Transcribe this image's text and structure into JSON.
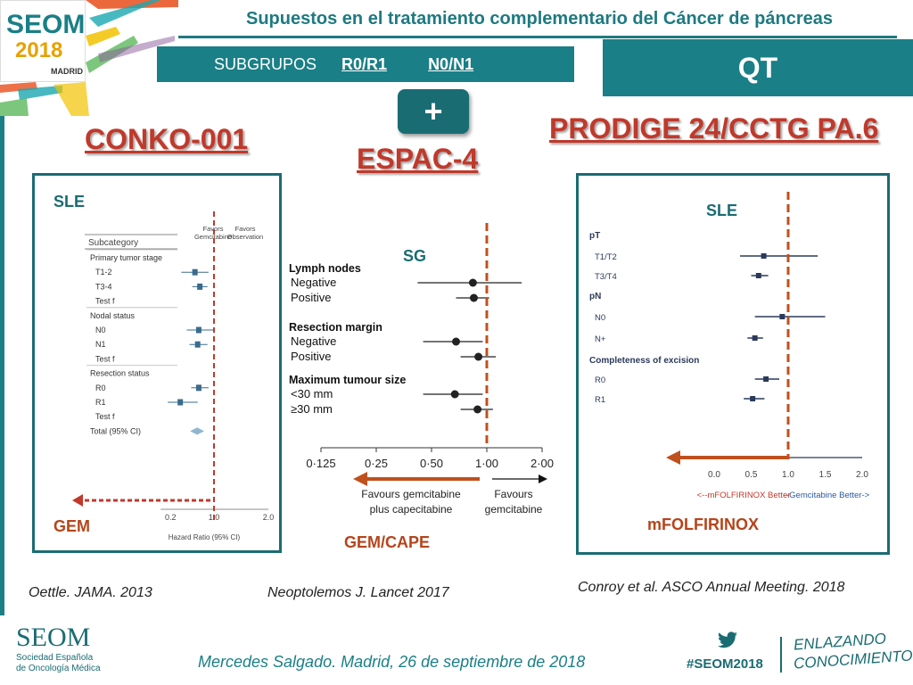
{
  "header": {
    "logo_text": "SEOM",
    "logo_year": "2018",
    "logo_city": "MADRID",
    "title": "Supuestos en el tratamiento complementario del Cáncer de páncreas"
  },
  "subgroups": {
    "label": "SUBGRUPOS",
    "r": "R0/R1",
    "n": "N0/N1"
  },
  "qt_label": "QT",
  "plus_label": "+",
  "trials": {
    "conko": "CONKO-001",
    "espac": "ESPAC-4",
    "prodige": "PRODIGE 24/CCTG PA.6"
  },
  "labels": {
    "conko_endpoint": "SLE",
    "conko_arm": "GEM",
    "espac_endpoint": "SG",
    "espac_arm": "GEM/CAPE",
    "prodige_endpoint": "SLE",
    "prodige_arm": "mFOLFIRINOX"
  },
  "citations": {
    "conko": "Oettle. JAMA. 2013",
    "espac": "Neoptolemos J. Lancet 2017",
    "prodige": "Conroy et al. ASCO Annual Meeting. 2018"
  },
  "footer": {
    "org_name": "SEOM",
    "org_sub1": "Sociedad Española",
    "org_sub2": "de Oncología Médica",
    "author": "Mercedes Salgado. Madrid, 26 de septiembre de 2018",
    "hashtag": "#SEOM2018",
    "slogan1": "ENLAZANDO",
    "slogan2": "CONOCIMIENTO"
  },
  "colors": {
    "teal": "#1a7f86",
    "red": "#c0392b",
    "orange": "#c0501c"
  },
  "chart_data": [
    {
      "type": "forest",
      "header_left": "Subcategory",
      "col_favors_left": [
        "Favors",
        "Gemcitabine"
      ],
      "col_favors_right": [
        "Favors",
        "Observation"
      ],
      "xlabel": "Hazard Ratio (95% CI)",
      "ticks": [
        0.2,
        1.0,
        2.0
      ],
      "tick_labels": [
        "0.2",
        "1.0",
        "2.0"
      ],
      "rows": [
        {
          "label": "Primary tumor stage",
          "kind": "group"
        },
        {
          "label": "T1-2",
          "hr": 0.65,
          "lo": 0.4,
          "hi": 0.9
        },
        {
          "label": "T3-4",
          "hr": 0.74,
          "lo": 0.6,
          "hi": 0.88
        },
        {
          "label": "Test f",
          "kind": "test"
        },
        {
          "label": "Nodal status",
          "kind": "group"
        },
        {
          "label": "N0",
          "hr": 0.72,
          "lo": 0.5,
          "hi": 1.0
        },
        {
          "label": "N1",
          "hr": 0.7,
          "lo": 0.55,
          "hi": 0.88
        },
        {
          "label": "Test f",
          "kind": "test"
        },
        {
          "label": "Resection status",
          "kind": "group"
        },
        {
          "label": "R0",
          "hr": 0.72,
          "lo": 0.58,
          "hi": 0.9
        },
        {
          "label": "R1",
          "hr": 0.38,
          "lo": 0.15,
          "hi": 0.7
        },
        {
          "label": "Test f",
          "kind": "test"
        },
        {
          "label": "Total (95% CI)",
          "kind": "total",
          "hr": 0.69
        }
      ]
    },
    {
      "type": "forest",
      "axis": "log",
      "ticks": [
        0.125,
        0.25,
        0.5,
        1.0,
        2.0
      ],
      "tick_labels": [
        "0·125",
        "0·25",
        "0·50",
        "1·00",
        "2·00"
      ],
      "favours_left": [
        "Favours gemcitabine",
        "plus capecitabine"
      ],
      "favours_right": [
        "Favours",
        "gemcitabine"
      ],
      "rows": [
        {
          "label": "Lymph nodes",
          "kind": "group"
        },
        {
          "label": "Negative",
          "hr": 0.84,
          "lo": 0.42,
          "hi": 1.55
        },
        {
          "label": "Positive",
          "hr": 0.85,
          "lo": 0.68,
          "hi": 1.03
        },
        {
          "label": "Resection margin",
          "kind": "group"
        },
        {
          "label": "Negative",
          "hr": 0.68,
          "lo": 0.45,
          "hi": 0.95
        },
        {
          "label": "Positive",
          "hr": 0.9,
          "lo": 0.72,
          "hi": 1.12
        },
        {
          "label": "Maximum tumour size",
          "kind": "group"
        },
        {
          "label": "<30 mm",
          "hr": 0.67,
          "lo": 0.45,
          "hi": 0.95
        },
        {
          "label": "≥30 mm",
          "hr": 0.89,
          "lo": 0.72,
          "hi": 1.08
        }
      ]
    },
    {
      "type": "forest",
      "ticks": [
        0.0,
        0.5,
        1.0,
        1.5,
        2.0
      ],
      "tick_labels": [
        "0.0",
        "0.5",
        "1.0",
        "1.5",
        "2.0"
      ],
      "favours_left": "<--mFOLFIRINOX Better",
      "favours_right": "--Gemcitabine Better->",
      "rows": [
        {
          "label": "pT",
          "kind": "group"
        },
        {
          "label": "T1/T2",
          "hr": 0.67,
          "lo": 0.35,
          "hi": 1.4
        },
        {
          "label": "T3/T4",
          "hr": 0.6,
          "lo": 0.5,
          "hi": 0.73
        },
        {
          "label": "pN",
          "kind": "group"
        },
        {
          "label": "N0",
          "hr": 0.92,
          "lo": 0.55,
          "hi": 1.5
        },
        {
          "label": "N+",
          "hr": 0.55,
          "lo": 0.45,
          "hi": 0.66
        },
        {
          "label": "Completeness of excision",
          "kind": "group"
        },
        {
          "label": "R0",
          "hr": 0.7,
          "lo": 0.55,
          "hi": 0.88
        },
        {
          "label": "R1",
          "hr": 0.52,
          "lo": 0.4,
          "hi": 0.68
        }
      ]
    }
  ]
}
